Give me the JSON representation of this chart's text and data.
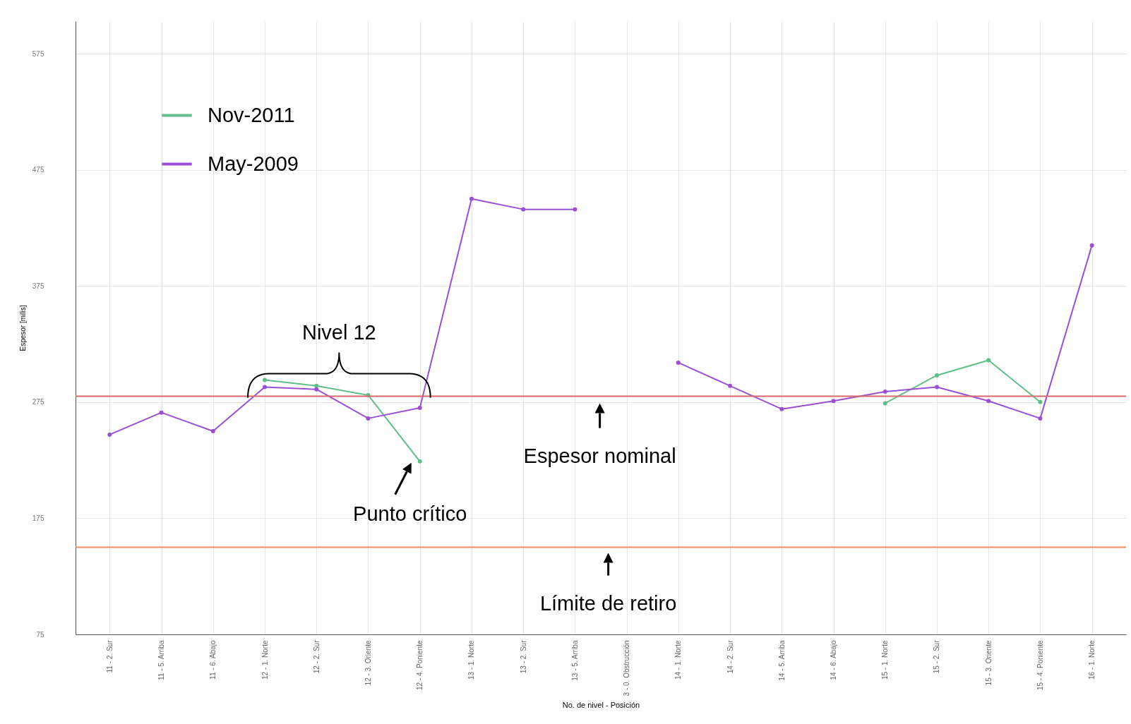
{
  "chart_data": {
    "type": "line",
    "xlabel": "No. de nivel - Posición",
    "ylabel": "Espesor [milis]",
    "categories": [
      "11 - 2. Sur",
      "11 - 5. Arriba",
      "11 - 6. Abajo",
      "12 - 1. Norte",
      "12 - 2. Sur",
      "12 - 3. Oriente",
      "12 - 4. Poniente",
      "13 - 1. Norte",
      "13 - 2. Sur",
      "13 - 5. Arriba",
      "3 - 0. Obstrucción",
      "14 - 1. Norte",
      "14 - 2. Sur",
      "14 - 5. Arriba",
      "14 - 6. Abajo",
      "15 - 1. Norte",
      "15 - 2. Sur",
      "15 - 3. Oriente",
      "15 - 4. Poniente",
      "16 - 1. Norte"
    ],
    "series": [
      {
        "name": "Nov-2011",
        "color": "#5fbf87",
        "values": [
          null,
          null,
          null,
          294,
          289,
          281,
          224,
          null,
          null,
          null,
          null,
          null,
          null,
          null,
          null,
          274,
          298,
          311,
          275,
          null
        ]
      },
      {
        "name": "May-2009",
        "color": "#9b4fd6",
        "values": [
          247,
          266,
          250,
          288,
          286,
          261,
          270,
          450,
          441,
          441,
          null,
          309,
          289,
          269,
          276,
          284,
          288,
          276,
          261,
          410
        ]
      }
    ],
    "ylim": [
      75,
      603
    ],
    "yticks": [
      75,
      175,
      275,
      375,
      475,
      575
    ],
    "ref_lines": [
      {
        "axis": "y",
        "value": 280,
        "label": "Espesor  nominal",
        "color": "#d46a6a"
      },
      {
        "axis": "y",
        "value": 150,
        "label": "Límite de retiro",
        "color": "#f08a5d"
      }
    ],
    "annotations": [
      "Nivel 12",
      {
        "text": "Punto crítico",
        "x": "12 - 4. Poniente",
        "y": 224
      }
    ],
    "grid": true,
    "legend": "top left",
    "marker": "circle"
  }
}
